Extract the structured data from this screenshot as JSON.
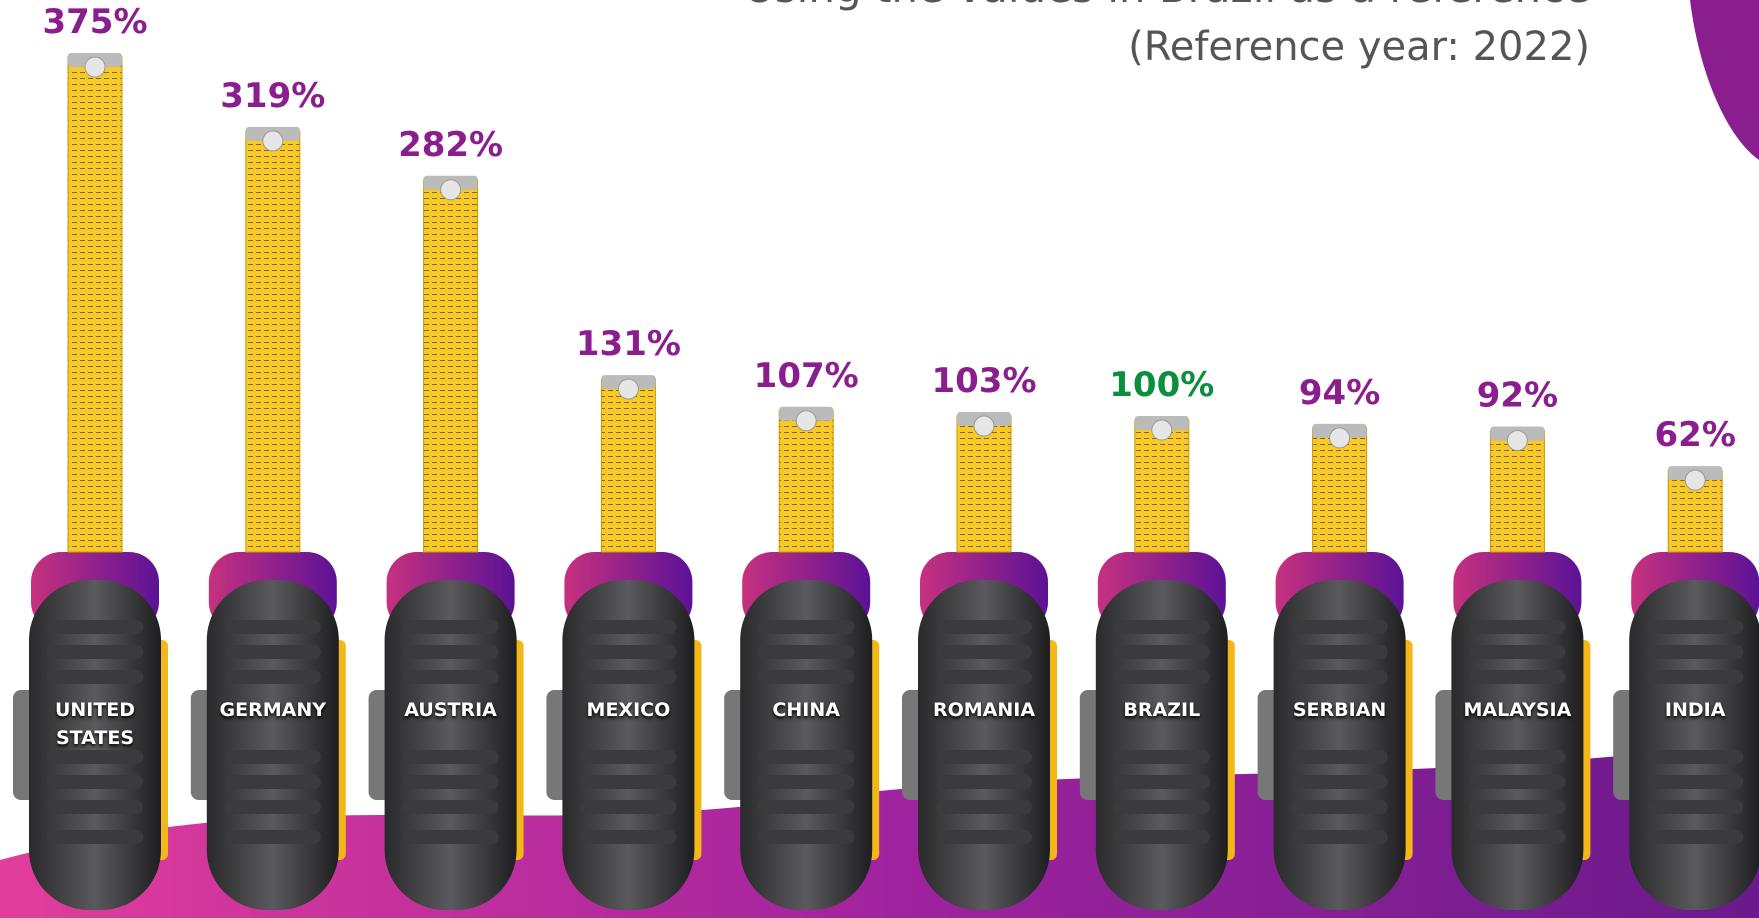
{
  "chart_data": {
    "type": "bar",
    "title": "Using the values in Brazil as a reference",
    "subtitle": "(Reference year: 2022)",
    "categories": [
      "UNITED STATES",
      "GERMANY",
      "AUSTRIA",
      "MEXICO",
      "CHINA",
      "ROMANIA",
      "BRAZIL",
      "SERBIAN",
      "MALAYSIA",
      "INDIA"
    ],
    "values": [
      375,
      319,
      282,
      131,
      107,
      103,
      100,
      94,
      92,
      62
    ],
    "value_labels": [
      "375%",
      "319%",
      "282%",
      "131%",
      "107%",
      "103%",
      "100%",
      "94%",
      "92%",
      "62%"
    ],
    "value_label_colors": [
      "#8b1e8e",
      "#8b1e8e",
      "#8b1e8e",
      "#8b1e8e",
      "#8b1e8e",
      "#8b1e8e",
      "#0b8f3c",
      "#8b1e8e",
      "#8b1e8e",
      "#8b1e8e"
    ],
    "color": "#f7c928",
    "ylim": [
      0,
      400
    ]
  }
}
